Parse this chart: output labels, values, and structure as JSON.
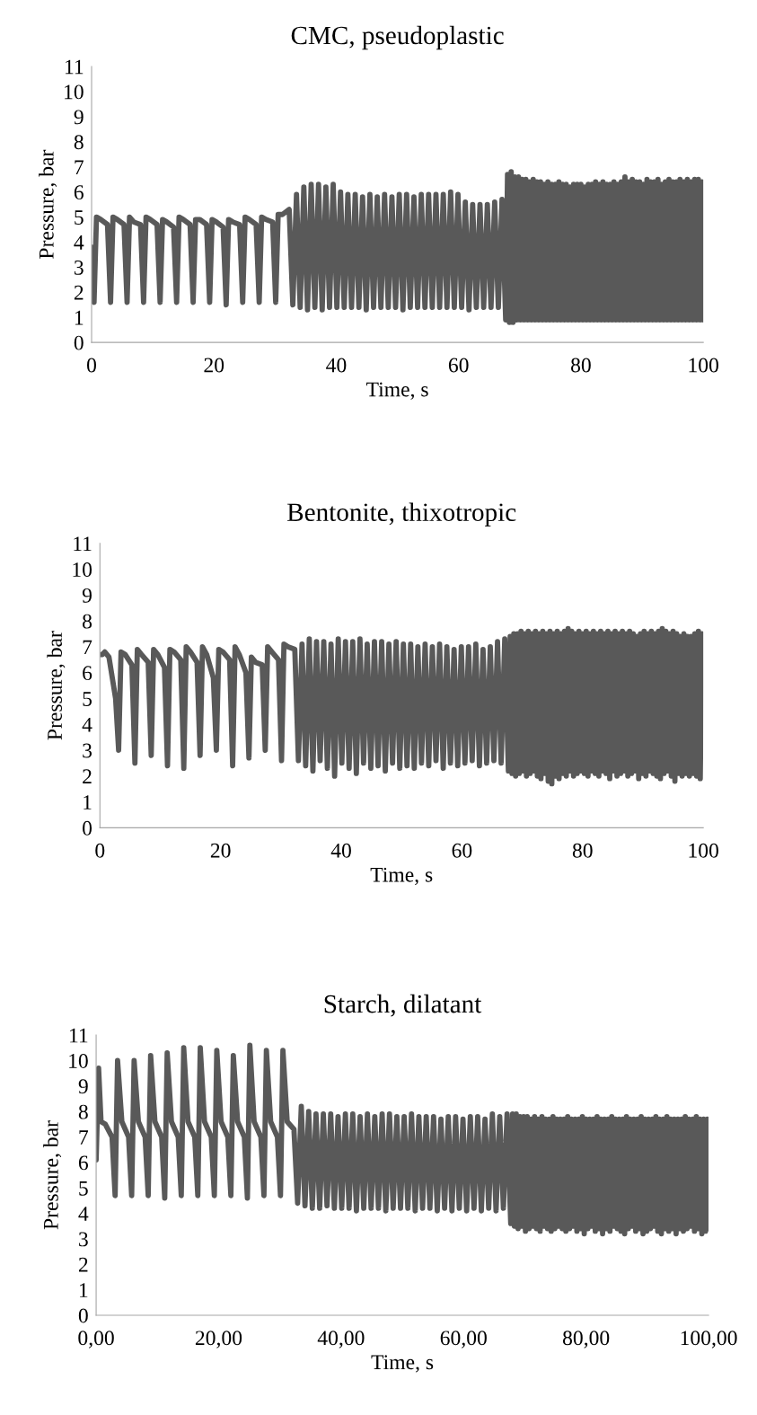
{
  "chart_data": [
    {
      "type": "line",
      "title": "CMC, pseudoplastic",
      "xlabel": "Time, s",
      "ylabel": "Pressure, bar",
      "xlim": [
        0,
        100
      ],
      "ylim": [
        0,
        11
      ],
      "xticks": [
        0,
        20,
        40,
        60,
        80,
        100
      ],
      "yticks": [
        0,
        1,
        2,
        3,
        4,
        5,
        6,
        7,
        8,
        9,
        10,
        11
      ],
      "grid": false,
      "marker": "none",
      "line_style": "solid",
      "series": [
        {
          "color": "#595959",
          "x": [
            0,
            0.4,
            0.8,
            1.5,
            2.6,
            3.1,
            3.5,
            4.2,
            5.3,
            5.8,
            6.2,
            6.9,
            8.0,
            8.5,
            8.9,
            9.6,
            10.7,
            11.2,
            11.6,
            12.3,
            13.4,
            13.9,
            14.3,
            15.0,
            16.1,
            16.6,
            17.0,
            17.7,
            18.8,
            19.3,
            19.7,
            20.4,
            21.5,
            22.0,
            22.4,
            23.1,
            24.2,
            24.7,
            25.1,
            25.8,
            26.9,
            27.4,
            27.8,
            28.5,
            29.6,
            30.1,
            30.5,
            31.2,
            32.3,
            32.9,
            33.5,
            34.1,
            34.7,
            35.3,
            35.9,
            36.5,
            37.1,
            37.7,
            38.3,
            38.9,
            39.5,
            40.1,
            40.7,
            41.3,
            41.9,
            42.5,
            43.1,
            43.7,
            44.3,
            44.9,
            45.5,
            46.1,
            46.7,
            47.3,
            47.9,
            48.5,
            49.1,
            49.7,
            50.3,
            50.9,
            51.5,
            52.1,
            52.7,
            53.3,
            53.9,
            54.5,
            55.1,
            55.7,
            56.3,
            56.9,
            57.5,
            58.1,
            58.7,
            59.3,
            59.9,
            60.5,
            61.1,
            61.7,
            62.3,
            62.9,
            63.5,
            64.1,
            64.7,
            65.3,
            65.9,
            66.5,
            67.1,
            67.7,
            68.0,
            68.3,
            68.6,
            68.9,
            69.2,
            69.5,
            69.8,
            70.1,
            70.4,
            70.7,
            71.0,
            71.3,
            71.6,
            71.9,
            72.2,
            72.5,
            72.8,
            73.1,
            73.4,
            73.7,
            74.0,
            74.3,
            74.6,
            74.9,
            75.2,
            75.5,
            75.8,
            76.1,
            76.4,
            76.7,
            77.0,
            77.3,
            77.6,
            77.9,
            78.2,
            78.5,
            78.8,
            79.1,
            79.4,
            79.7,
            80.0,
            80.3,
            80.6,
            80.9,
            81.2,
            81.5,
            81.8,
            82.1,
            82.4,
            82.7,
            83.0,
            83.3,
            83.6,
            83.9,
            84.2,
            84.5,
            84.8,
            85.1,
            85.4,
            85.7,
            86.0,
            86.3,
            86.6,
            86.9,
            87.2,
            87.5,
            87.8,
            88.1,
            88.4,
            88.7,
            89.0,
            89.3,
            89.6,
            89.9,
            90.2,
            90.5,
            90.8,
            91.1,
            91.4,
            91.7,
            92.0,
            92.3,
            92.6,
            92.9,
            93.2,
            93.5,
            93.8,
            94.1,
            94.4,
            94.7,
            95.0,
            95.3,
            95.6,
            95.9,
            96.2,
            96.5,
            96.8,
            97.1,
            97.4,
            97.7,
            98.0,
            98.3,
            98.6,
            98.9,
            99.2,
            99.5,
            99.8,
            100.0
          ],
          "values": [
            3.8,
            1.6,
            5.0,
            4.9,
            4.7,
            1.6,
            5.0,
            4.9,
            4.7,
            1.6,
            5.0,
            4.8,
            4.7,
            1.6,
            5.0,
            4.9,
            4.7,
            1.6,
            4.9,
            4.8,
            4.6,
            1.6,
            5.0,
            4.9,
            4.7,
            1.6,
            4.9,
            4.9,
            4.7,
            1.6,
            4.9,
            4.8,
            4.6,
            1.5,
            4.9,
            4.8,
            4.7,
            1.6,
            5.0,
            4.9,
            4.7,
            1.6,
            5.0,
            4.9,
            4.8,
            1.6,
            5.1,
            5.1,
            5.3,
            1.5,
            5.9,
            1.4,
            6.2,
            1.3,
            6.3,
            1.4,
            6.3,
            1.3,
            6.2,
            1.4,
            6.3,
            1.4,
            6.0,
            1.4,
            5.9,
            1.4,
            5.9,
            1.4,
            5.8,
            1.3,
            5.9,
            1.4,
            5.8,
            1.4,
            5.9,
            1.4,
            5.8,
            1.4,
            5.9,
            1.3,
            5.9,
            1.4,
            5.8,
            1.4,
            5.9,
            1.4,
            5.9,
            1.4,
            5.9,
            1.4,
            5.9,
            1.4,
            6.0,
            1.4,
            5.9,
            1.4,
            5.6,
            1.3,
            5.5,
            1.4,
            5.5,
            1.4,
            5.5,
            1.4,
            5.6,
            1.4,
            5.7,
            0.9,
            6.7,
            0.8,
            6.8,
            0.8,
            6.6,
            0.9,
            6.6,
            0.9,
            6.5,
            0.9,
            6.5,
            0.9,
            6.4,
            0.9,
            6.5,
            0.9,
            6.4,
            0.9,
            6.4,
            0.9,
            6.3,
            0.9,
            6.4,
            0.9,
            6.3,
            0.9,
            6.3,
            0.9,
            6.4,
            0.9,
            6.3,
            0.9,
            6.3,
            0.9,
            6.2,
            0.9,
            6.3,
            0.9,
            6.3,
            0.9,
            6.3,
            0.9,
            6.2,
            0.9,
            6.3,
            0.9,
            6.3,
            0.9,
            6.4,
            0.9,
            6.3,
            0.9,
            6.4,
            0.9,
            6.3,
            0.9,
            6.3,
            0.9,
            6.4,
            0.9,
            6.3,
            0.9,
            6.4,
            0.9,
            6.6,
            0.9,
            6.4,
            0.9,
            6.5,
            0.9,
            6.4,
            0.9,
            6.4,
            0.9,
            6.3,
            0.9,
            6.5,
            0.9,
            6.4,
            0.9,
            6.4,
            0.9,
            6.5,
            0.9,
            6.3,
            0.9,
            6.4,
            0.9,
            6.5,
            0.9,
            6.4,
            0.9,
            6.4,
            0.9,
            6.5,
            0.9,
            6.4,
            0.9,
            6.5,
            0.9,
            6.4,
            0.9,
            6.5,
            0.9,
            6.5,
            0.9,
            6.4,
            0.9
          ]
        }
      ]
    },
    {
      "type": "line",
      "title": "Bentonite, thixotropic",
      "xlabel": "Time, s",
      "ylabel": "Pressure, bar",
      "xlim": [
        0,
        100
      ],
      "ylim": [
        0,
        11
      ],
      "xticks": [
        0,
        20,
        40,
        60,
        80,
        100
      ],
      "yticks": [
        0,
        1,
        2,
        3,
        4,
        5,
        6,
        7,
        8,
        9,
        10,
        11
      ],
      "grid": false,
      "marker": "none",
      "line_style": "solid",
      "series": [
        {
          "color": "#595959",
          "x": [
            0,
            0.4,
            0.8,
            1.5,
            2.6,
            3.1,
            3.5,
            4.2,
            5.3,
            5.8,
            6.2,
            6.9,
            8.0,
            8.5,
            8.9,
            9.6,
            10.7,
            11.2,
            11.6,
            12.3,
            13.4,
            13.9,
            14.3,
            15.0,
            16.1,
            16.6,
            17.0,
            17.7,
            18.8,
            19.3,
            19.7,
            20.4,
            21.5,
            22.0,
            22.4,
            23.1,
            24.2,
            24.7,
            25.1,
            25.8,
            26.9,
            27.4,
            27.8,
            28.5,
            29.6,
            30.1,
            30.5,
            31.2,
            32.3,
            32.9,
            33.5,
            34.1,
            34.7,
            35.3,
            35.9,
            36.5,
            37.1,
            37.7,
            38.3,
            38.9,
            39.5,
            40.1,
            40.7,
            41.3,
            41.9,
            42.5,
            43.1,
            43.7,
            44.3,
            44.9,
            45.5,
            46.1,
            46.7,
            47.3,
            47.9,
            48.5,
            49.1,
            49.7,
            50.3,
            50.9,
            51.5,
            52.1,
            52.7,
            53.3,
            53.9,
            54.5,
            55.1,
            55.7,
            56.3,
            56.9,
            57.5,
            58.1,
            58.7,
            59.3,
            59.9,
            60.5,
            61.1,
            61.7,
            62.3,
            62.9,
            63.5,
            64.1,
            64.7,
            65.3,
            65.9,
            66.5,
            67.1,
            67.7,
            68.0,
            68.3,
            68.6,
            68.9,
            69.2,
            69.5,
            69.8,
            70.1,
            70.4,
            70.7,
            71.0,
            71.3,
            71.6,
            71.9,
            72.2,
            72.5,
            72.8,
            73.1,
            73.4,
            73.7,
            74.0,
            74.3,
            74.6,
            74.9,
            75.2,
            75.5,
            75.8,
            76.1,
            76.4,
            76.7,
            77.0,
            77.3,
            77.6,
            77.9,
            78.2,
            78.5,
            78.8,
            79.1,
            79.4,
            79.7,
            80.0,
            80.3,
            80.6,
            80.9,
            81.2,
            81.5,
            81.8,
            82.1,
            82.4,
            82.7,
            83.0,
            83.3,
            83.6,
            83.9,
            84.2,
            84.5,
            84.8,
            85.1,
            85.4,
            85.7,
            86.0,
            86.3,
            86.6,
            86.9,
            87.2,
            87.5,
            87.8,
            88.1,
            88.4,
            88.7,
            89.0,
            89.3,
            89.6,
            89.9,
            90.2,
            90.5,
            90.8,
            91.1,
            91.4,
            91.7,
            92.0,
            92.3,
            92.6,
            92.9,
            93.2,
            93.5,
            93.8,
            94.1,
            94.4,
            94.7,
            95.0,
            95.3,
            95.6,
            95.9,
            96.2,
            96.5,
            96.8,
            97.1,
            97.4,
            97.7,
            98.0,
            98.3,
            98.6,
            98.9,
            99.2,
            99.5,
            99.8,
            100.0
          ],
          "values": [
            6.7,
            6.7,
            6.8,
            6.6,
            5.0,
            3.0,
            6.8,
            6.7,
            6.3,
            2.5,
            6.9,
            6.7,
            6.4,
            2.8,
            6.9,
            6.7,
            6.2,
            2.4,
            6.9,
            6.8,
            6.5,
            2.3,
            7.0,
            6.8,
            6.4,
            2.8,
            7.0,
            6.7,
            5.8,
            3.0,
            6.9,
            6.8,
            6.5,
            2.4,
            7.0,
            6.7,
            6.0,
            2.7,
            6.6,
            6.4,
            6.3,
            3.0,
            7.0,
            6.8,
            6.5,
            2.6,
            7.1,
            7.0,
            6.9,
            2.6,
            7.1,
            2.4,
            7.3,
            2.2,
            7.2,
            2.6,
            7.2,
            2.3,
            7.1,
            2.0,
            7.3,
            2.5,
            7.2,
            2.3,
            7.2,
            2.1,
            7.3,
            2.5,
            7.1,
            2.3,
            7.2,
            2.4,
            7.2,
            2.2,
            7.1,
            2.5,
            7.2,
            2.3,
            7.1,
            2.4,
            7.1,
            2.3,
            7.0,
            2.5,
            7.1,
            2.4,
            7.0,
            2.6,
            7.1,
            2.3,
            7.0,
            2.5,
            6.9,
            2.4,
            7.0,
            2.5,
            7.0,
            2.6,
            7.1,
            2.4,
            6.9,
            2.5,
            7.0,
            2.6,
            7.2,
            2.5,
            7.3,
            2.2,
            7.4,
            2.1,
            7.5,
            2.0,
            7.5,
            2.1,
            7.6,
            2.2,
            7.5,
            2.0,
            7.6,
            2.1,
            7.5,
            2.2,
            7.6,
            2.0,
            7.5,
            1.9,
            7.6,
            2.1,
            7.5,
            1.8,
            7.6,
            1.7,
            7.5,
            2.0,
            7.6,
            1.9,
            7.5,
            2.1,
            7.6,
            2.0,
            7.7,
            2.2,
            7.6,
            2.0,
            7.5,
            2.1,
            7.6,
            2.2,
            7.5,
            2.1,
            7.6,
            2.0,
            7.5,
            2.2,
            7.6,
            2.1,
            7.5,
            2.0,
            7.6,
            2.2,
            7.5,
            2.1,
            7.6,
            1.9,
            7.5,
            2.2,
            7.6,
            2.0,
            7.5,
            2.1,
            7.6,
            2.2,
            7.5,
            2.0,
            7.6,
            2.1,
            7.5,
            2.2,
            7.4,
            1.9,
            7.5,
            2.1,
            7.6,
            2.0,
            7.5,
            2.2,
            7.6,
            2.1,
            7.5,
            2.0,
            7.6,
            1.9,
            7.7,
            2.1,
            7.6,
            2.2,
            7.5,
            2.0,
            7.6,
            1.8,
            7.5,
            2.1,
            7.4,
            2.0,
            7.5,
            2.1,
            7.4,
            2.0,
            7.4,
            2.1,
            7.5,
            2.0,
            7.6,
            1.9,
            7.5,
            7.4
          ]
        }
      ]
    },
    {
      "type": "line",
      "title": "Starch, dilatant",
      "xlabel": "Time, s",
      "ylabel": "Pressure, bar",
      "xlim": [
        0,
        100
      ],
      "ylim": [
        0,
        11
      ],
      "xticks": [
        {
          "value": 0,
          "label": "0,00"
        },
        {
          "value": 20,
          "label": "20,00"
        },
        {
          "value": 40,
          "label": "40,00"
        },
        {
          "value": 60,
          "label": "60,00"
        },
        {
          "value": 80,
          "label": "80,00"
        },
        {
          "value": 100,
          "label": "100,00"
        }
      ],
      "yticks": [
        0,
        1,
        2,
        3,
        4,
        5,
        6,
        7,
        8,
        9,
        10,
        11
      ],
      "grid": false,
      "marker": "none",
      "line_style": "solid",
      "series": [
        {
          "color": "#595959",
          "x": [
            0,
            0.4,
            0.8,
            1.5,
            2.6,
            3.1,
            3.5,
            4.2,
            5.3,
            5.8,
            6.2,
            6.9,
            8.0,
            8.5,
            8.9,
            9.6,
            10.7,
            11.2,
            11.6,
            12.3,
            13.4,
            13.9,
            14.3,
            15.0,
            16.1,
            16.6,
            17.0,
            17.7,
            18.8,
            19.3,
            19.7,
            20.4,
            21.5,
            22.0,
            22.4,
            23.1,
            24.2,
            24.7,
            25.1,
            25.8,
            26.9,
            27.4,
            27.8,
            28.5,
            29.6,
            30.1,
            30.5,
            31.2,
            32.3,
            32.9,
            33.5,
            34.1,
            34.7,
            35.3,
            35.9,
            36.5,
            37.1,
            37.7,
            38.3,
            38.9,
            39.5,
            40.1,
            40.7,
            41.3,
            41.9,
            42.5,
            43.1,
            43.7,
            44.3,
            44.9,
            45.5,
            46.1,
            46.7,
            47.3,
            47.9,
            48.5,
            49.1,
            49.7,
            50.3,
            50.9,
            51.5,
            52.1,
            52.7,
            53.3,
            53.9,
            54.5,
            55.1,
            55.7,
            56.3,
            56.9,
            57.5,
            58.1,
            58.7,
            59.3,
            59.9,
            60.5,
            61.1,
            61.7,
            62.3,
            62.9,
            63.5,
            64.1,
            64.7,
            65.3,
            65.9,
            66.5,
            67.1,
            67.7,
            68.0,
            68.3,
            68.6,
            68.9,
            69.2,
            69.5,
            69.8,
            70.1,
            70.4,
            70.7,
            71.0,
            71.3,
            71.6,
            71.9,
            72.2,
            72.5,
            72.8,
            73.1,
            73.4,
            73.7,
            74.0,
            74.3,
            74.6,
            74.9,
            75.2,
            75.5,
            75.8,
            76.1,
            76.4,
            76.7,
            77.0,
            77.3,
            77.6,
            77.9,
            78.2,
            78.5,
            78.8,
            79.1,
            79.4,
            79.7,
            80.0,
            80.3,
            80.6,
            80.9,
            81.2,
            81.5,
            81.8,
            82.1,
            82.4,
            82.7,
            83.0,
            83.3,
            83.6,
            83.9,
            84.2,
            84.5,
            84.8,
            85.1,
            85.4,
            85.7,
            86.0,
            86.3,
            86.6,
            86.9,
            87.2,
            87.5,
            87.8,
            88.1,
            88.4,
            88.7,
            89.0,
            89.3,
            89.6,
            89.9,
            90.2,
            90.5,
            90.8,
            91.1,
            91.4,
            91.7,
            92.0,
            92.3,
            92.6,
            92.9,
            93.2,
            93.5,
            93.8,
            94.1,
            94.4,
            94.7,
            95.0,
            95.3,
            95.6,
            95.9,
            96.2,
            96.5,
            96.8,
            97.1,
            97.4,
            97.7,
            98.0,
            98.3,
            98.6,
            98.9,
            99.2,
            99.5,
            99.8,
            100.0
          ],
          "values": [
            6.1,
            9.7,
            7.6,
            7.5,
            7.0,
            4.7,
            10.0,
            7.6,
            7.0,
            4.7,
            10.0,
            7.6,
            7.0,
            4.7,
            10.2,
            7.6,
            7.0,
            4.6,
            10.3,
            7.6,
            7.0,
            4.7,
            10.5,
            7.6,
            7.0,
            4.7,
            10.5,
            7.6,
            7.0,
            4.7,
            10.4,
            7.6,
            7.0,
            4.7,
            10.2,
            7.6,
            7.0,
            4.6,
            10.6,
            7.6,
            7.0,
            4.7,
            10.4,
            7.6,
            7.0,
            4.7,
            10.4,
            7.6,
            7.3,
            4.4,
            8.2,
            4.3,
            8.0,
            4.2,
            7.9,
            4.2,
            7.9,
            4.3,
            7.9,
            4.2,
            7.8,
            4.2,
            7.9,
            4.2,
            7.9,
            4.1,
            7.8,
            4.2,
            7.9,
            4.2,
            7.8,
            4.2,
            7.9,
            4.1,
            7.9,
            4.2,
            7.8,
            4.2,
            7.8,
            4.2,
            7.9,
            4.1,
            7.8,
            4.2,
            7.8,
            4.2,
            7.8,
            4.1,
            7.7,
            4.2,
            7.8,
            4.1,
            7.8,
            4.2,
            7.7,
            4.1,
            7.8,
            4.2,
            7.8,
            4.1,
            7.7,
            4.2,
            7.9,
            4.1,
            7.8,
            4.2,
            7.9,
            3.6,
            7.9,
            3.5,
            7.9,
            3.4,
            7.8,
            3.5,
            7.8,
            3.3,
            7.8,
            3.4,
            7.7,
            3.5,
            7.8,
            3.4,
            7.7,
            3.3,
            7.8,
            3.5,
            7.7,
            3.4,
            7.7,
            3.3,
            7.8,
            3.4,
            7.7,
            3.5,
            7.7,
            3.4,
            7.7,
            3.3,
            7.8,
            3.4,
            7.7,
            3.5,
            7.7,
            3.3,
            7.7,
            3.4,
            7.8,
            3.2,
            7.7,
            3.4,
            7.7,
            3.5,
            7.7,
            3.3,
            7.8,
            3.4,
            7.7,
            3.2,
            7.7,
            3.4,
            7.7,
            3.3,
            7.8,
            3.5,
            7.7,
            3.4,
            7.7,
            3.3,
            7.7,
            3.2,
            7.8,
            3.4,
            7.7,
            3.5,
            7.7,
            3.3,
            7.7,
            3.4,
            7.8,
            3.2,
            7.7,
            3.3,
            7.7,
            3.4,
            7.7,
            3.5,
            7.8,
            3.3,
            7.7,
            3.2,
            7.7,
            3.4,
            7.8,
            3.3,
            7.7,
            3.4,
            7.7,
            3.2,
            7.7,
            3.4,
            7.7,
            3.3,
            7.8,
            3.4,
            7.7,
            3.5,
            7.7,
            3.3,
            7.8,
            3.4,
            7.7,
            3.2,
            7.7,
            3.3,
            7.7,
            3.4
          ]
        }
      ]
    }
  ]
}
